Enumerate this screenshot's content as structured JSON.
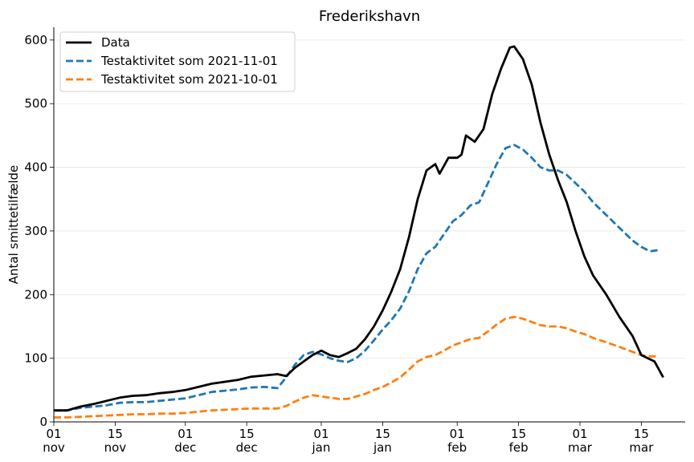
{
  "chart_data": {
    "type": "line",
    "title": "Frederikshavn",
    "xlabel": "",
    "ylabel": "Antal smittetilfælde",
    "ylim": [
      0,
      620
    ],
    "yticks": [
      0,
      100,
      200,
      300,
      400,
      500,
      600
    ],
    "grid": "horizontal",
    "legend_position": "top-left",
    "x_axis": {
      "type": "date",
      "range": [
        "2021-11-01",
        "2022-03-25"
      ],
      "ticks": [
        {
          "date": "2021-11-01",
          "day": "01",
          "month": "nov"
        },
        {
          "date": "2021-11-15",
          "day": "15",
          "month": "nov"
        },
        {
          "date": "2021-12-01",
          "day": "01",
          "month": "dec"
        },
        {
          "date": "2021-12-15",
          "day": "15",
          "month": "dec"
        },
        {
          "date": "2022-01-01",
          "day": "01",
          "month": "jan"
        },
        {
          "date": "2022-01-15",
          "day": "15",
          "month": "jan"
        },
        {
          "date": "2022-02-01",
          "day": "01",
          "month": "feb"
        },
        {
          "date": "2022-02-15",
          "day": "15",
          "month": "feb"
        },
        {
          "date": "2022-03-01",
          "day": "01",
          "month": "mar"
        },
        {
          "date": "2022-03-15",
          "day": "15",
          "month": "mar"
        }
      ]
    },
    "series": [
      {
        "name": "Data",
        "color": "#000000",
        "dash": "solid",
        "points": [
          [
            "2021-11-01",
            18
          ],
          [
            "2021-11-04",
            18
          ],
          [
            "2021-11-07",
            24
          ],
          [
            "2021-11-10",
            28
          ],
          [
            "2021-11-13",
            33
          ],
          [
            "2021-11-16",
            38
          ],
          [
            "2021-11-19",
            41
          ],
          [
            "2021-11-22",
            42
          ],
          [
            "2021-11-25",
            45
          ],
          [
            "2021-11-28",
            47
          ],
          [
            "2021-12-01",
            50
          ],
          [
            "2021-12-04",
            55
          ],
          [
            "2021-12-07",
            60
          ],
          [
            "2021-12-10",
            63
          ],
          [
            "2021-12-13",
            66
          ],
          [
            "2021-12-16",
            71
          ],
          [
            "2021-12-19",
            73
          ],
          [
            "2021-12-22",
            75
          ],
          [
            "2021-12-24",
            72
          ],
          [
            "2021-12-26",
            85
          ],
          [
            "2021-12-28",
            95
          ],
          [
            "2021-12-30",
            105
          ],
          [
            "2022-01-01",
            112
          ],
          [
            "2022-01-03",
            105
          ],
          [
            "2022-01-05",
            102
          ],
          [
            "2022-01-07",
            108
          ],
          [
            "2022-01-09",
            115
          ],
          [
            "2022-01-11",
            130
          ],
          [
            "2022-01-13",
            150
          ],
          [
            "2022-01-15",
            175
          ],
          [
            "2022-01-17",
            205
          ],
          [
            "2022-01-19",
            240
          ],
          [
            "2022-01-21",
            290
          ],
          [
            "2022-01-23",
            350
          ],
          [
            "2022-01-25",
            395
          ],
          [
            "2022-01-27",
            405
          ],
          [
            "2022-01-28",
            390
          ],
          [
            "2022-01-30",
            415
          ],
          [
            "2022-02-01",
            415
          ],
          [
            "2022-02-02",
            420
          ],
          [
            "2022-02-03",
            450
          ],
          [
            "2022-02-05",
            440
          ],
          [
            "2022-02-07",
            460
          ],
          [
            "2022-02-09",
            515
          ],
          [
            "2022-02-11",
            555
          ],
          [
            "2022-02-13",
            588
          ],
          [
            "2022-02-14",
            590
          ],
          [
            "2022-02-16",
            570
          ],
          [
            "2022-02-18",
            530
          ],
          [
            "2022-02-20",
            470
          ],
          [
            "2022-02-22",
            420
          ],
          [
            "2022-02-24",
            380
          ],
          [
            "2022-02-26",
            345
          ],
          [
            "2022-02-28",
            300
          ],
          [
            "2022-03-02",
            260
          ],
          [
            "2022-03-04",
            230
          ],
          [
            "2022-03-07",
            200
          ],
          [
            "2022-03-10",
            165
          ],
          [
            "2022-03-13",
            135
          ],
          [
            "2022-03-15",
            105
          ],
          [
            "2022-03-18",
            95
          ],
          [
            "2022-03-20",
            70
          ]
        ]
      },
      {
        "name": "Testaktivitet som 2021-11-01",
        "color": "#1f77b4",
        "dash": "dashed",
        "points": [
          [
            "2021-11-01",
            18
          ],
          [
            "2021-11-04",
            18
          ],
          [
            "2021-11-07",
            22
          ],
          [
            "2021-11-10",
            24
          ],
          [
            "2021-11-13",
            26
          ],
          [
            "2021-11-16",
            30
          ],
          [
            "2021-11-19",
            31
          ],
          [
            "2021-11-22",
            31
          ],
          [
            "2021-11-25",
            33
          ],
          [
            "2021-11-28",
            35
          ],
          [
            "2021-12-01",
            37
          ],
          [
            "2021-12-04",
            42
          ],
          [
            "2021-12-07",
            47
          ],
          [
            "2021-12-10",
            49
          ],
          [
            "2021-12-13",
            51
          ],
          [
            "2021-12-16",
            54
          ],
          [
            "2021-12-19",
            55
          ],
          [
            "2021-12-22",
            53
          ],
          [
            "2021-12-24",
            70
          ],
          [
            "2021-12-26",
            90
          ],
          [
            "2021-12-28",
            105
          ],
          [
            "2021-12-30",
            110
          ],
          [
            "2022-01-01",
            106
          ],
          [
            "2022-01-03",
            100
          ],
          [
            "2022-01-05",
            96
          ],
          [
            "2022-01-07",
            94
          ],
          [
            "2022-01-09",
            100
          ],
          [
            "2022-01-11",
            112
          ],
          [
            "2022-01-13",
            128
          ],
          [
            "2022-01-15",
            145
          ],
          [
            "2022-01-17",
            160
          ],
          [
            "2022-01-19",
            178
          ],
          [
            "2022-01-21",
            205
          ],
          [
            "2022-01-23",
            240
          ],
          [
            "2022-01-25",
            265
          ],
          [
            "2022-01-27",
            275
          ],
          [
            "2022-01-29",
            295
          ],
          [
            "2022-01-31",
            315
          ],
          [
            "2022-02-02",
            325
          ],
          [
            "2022-02-04",
            340
          ],
          [
            "2022-02-06",
            345
          ],
          [
            "2022-02-08",
            375
          ],
          [
            "2022-02-10",
            405
          ],
          [
            "2022-02-12",
            430
          ],
          [
            "2022-02-14",
            435
          ],
          [
            "2022-02-16",
            428
          ],
          [
            "2022-02-18",
            415
          ],
          [
            "2022-02-20",
            400
          ],
          [
            "2022-02-22",
            395
          ],
          [
            "2022-02-24",
            395
          ],
          [
            "2022-02-26",
            388
          ],
          [
            "2022-02-28",
            375
          ],
          [
            "2022-03-02",
            362
          ],
          [
            "2022-03-04",
            345
          ],
          [
            "2022-03-07",
            325
          ],
          [
            "2022-03-10",
            305
          ],
          [
            "2022-03-13",
            285
          ],
          [
            "2022-03-15",
            275
          ],
          [
            "2022-03-17",
            268
          ],
          [
            "2022-03-19",
            270
          ]
        ]
      },
      {
        "name": "Testaktivitet som 2021-10-01",
        "color": "#ff7f0e",
        "dash": "dashed",
        "points": [
          [
            "2021-11-01",
            7
          ],
          [
            "2021-11-04",
            7
          ],
          [
            "2021-11-07",
            8
          ],
          [
            "2021-11-10",
            9
          ],
          [
            "2021-11-13",
            10
          ],
          [
            "2021-11-16",
            11
          ],
          [
            "2021-11-19",
            12
          ],
          [
            "2021-11-22",
            12
          ],
          [
            "2021-11-25",
            13
          ],
          [
            "2021-11-28",
            13
          ],
          [
            "2021-12-01",
            14
          ],
          [
            "2021-12-04",
            16
          ],
          [
            "2021-12-07",
            18
          ],
          [
            "2021-12-10",
            19
          ],
          [
            "2021-12-13",
            20
          ],
          [
            "2021-12-16",
            21
          ],
          [
            "2021-12-19",
            21
          ],
          [
            "2021-12-22",
            21
          ],
          [
            "2021-12-24",
            25
          ],
          [
            "2021-12-26",
            32
          ],
          [
            "2021-12-28",
            38
          ],
          [
            "2021-12-30",
            42
          ],
          [
            "2022-01-01",
            40
          ],
          [
            "2022-01-03",
            38
          ],
          [
            "2022-01-05",
            36
          ],
          [
            "2022-01-07",
            36
          ],
          [
            "2022-01-09",
            40
          ],
          [
            "2022-01-11",
            44
          ],
          [
            "2022-01-13",
            50
          ],
          [
            "2022-01-15",
            55
          ],
          [
            "2022-01-17",
            62
          ],
          [
            "2022-01-19",
            70
          ],
          [
            "2022-01-21",
            82
          ],
          [
            "2022-01-23",
            95
          ],
          [
            "2022-01-25",
            102
          ],
          [
            "2022-01-27",
            105
          ],
          [
            "2022-01-29",
            112
          ],
          [
            "2022-01-31",
            120
          ],
          [
            "2022-02-02",
            125
          ],
          [
            "2022-02-04",
            130
          ],
          [
            "2022-02-06",
            132
          ],
          [
            "2022-02-08",
            142
          ],
          [
            "2022-02-10",
            153
          ],
          [
            "2022-02-12",
            162
          ],
          [
            "2022-02-14",
            165
          ],
          [
            "2022-02-16",
            162
          ],
          [
            "2022-02-18",
            157
          ],
          [
            "2022-02-20",
            152
          ],
          [
            "2022-02-22",
            150
          ],
          [
            "2022-02-24",
            150
          ],
          [
            "2022-02-26",
            147
          ],
          [
            "2022-02-28",
            142
          ],
          [
            "2022-03-02",
            138
          ],
          [
            "2022-03-04",
            132
          ],
          [
            "2022-03-07",
            125
          ],
          [
            "2022-03-10",
            118
          ],
          [
            "2022-03-13",
            110
          ],
          [
            "2022-03-15",
            105
          ],
          [
            "2022-03-17",
            103
          ],
          [
            "2022-03-19",
            103
          ]
        ]
      }
    ]
  }
}
